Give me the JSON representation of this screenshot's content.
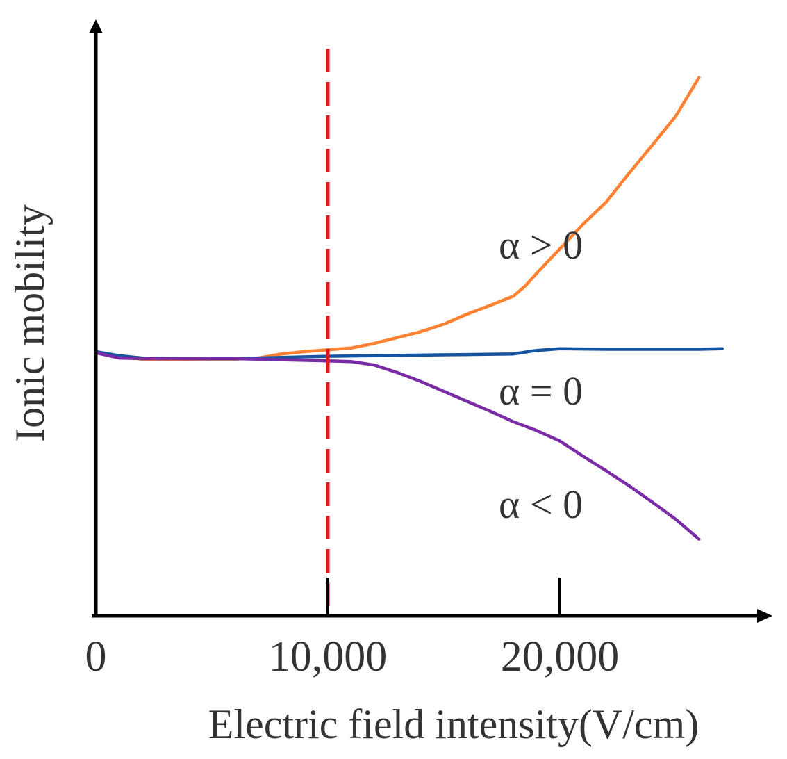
{
  "chart_data": {
    "type": "line",
    "title": "",
    "xlabel": "Electric field intensity(V/cm)",
    "ylabel": "Ionic mobility",
    "xlim": [
      0,
      29000
    ],
    "ylim": [
      0,
      100
    ],
    "x_ticks": [
      {
        "value": 0,
        "label": "0"
      },
      {
        "value": 10000,
        "label": "10,000"
      },
      {
        "value": 20000,
        "label": "20,000"
      }
    ],
    "reference_line": {
      "x": 10000,
      "style": "dashed",
      "color": "#e8151b"
    },
    "series": [
      {
        "name": "alpha-positive",
        "label": "α > 0",
        "color": "#ff8131",
        "points": [
          [
            0,
            45
          ],
          [
            1000,
            44.3
          ],
          [
            2000,
            43.9
          ],
          [
            3000,
            43.8
          ],
          [
            4000,
            43.8
          ],
          [
            5000,
            43.9
          ],
          [
            6000,
            43.9
          ],
          [
            7000,
            44.1
          ],
          [
            8000,
            44.8
          ],
          [
            9000,
            45.2
          ],
          [
            10000,
            45.5
          ],
          [
            11000,
            45.8
          ],
          [
            12000,
            46.6
          ],
          [
            13000,
            47.6
          ],
          [
            14000,
            48.6
          ],
          [
            15000,
            49.9
          ],
          [
            16000,
            51.6
          ],
          [
            17000,
            53.1
          ],
          [
            18000,
            54.7
          ],
          [
            18500,
            56.4
          ],
          [
            19000,
            58.6
          ],
          [
            20000,
            62.8
          ],
          [
            21000,
            67
          ],
          [
            22000,
            70.8
          ],
          [
            23000,
            75.8
          ],
          [
            24000,
            80.6
          ],
          [
            25000,
            85.5
          ],
          [
            26000,
            92.1
          ]
        ]
      },
      {
        "name": "alpha-zero",
        "label": "α = 0",
        "color": "#1654a0",
        "points": [
          [
            0,
            45.2
          ],
          [
            1000,
            44.5
          ],
          [
            2000,
            44.1
          ],
          [
            4000,
            44
          ],
          [
            6000,
            44
          ],
          [
            8000,
            44.2
          ],
          [
            10000,
            44.4
          ],
          [
            12000,
            44.5
          ],
          [
            14000,
            44.6
          ],
          [
            16000,
            44.7
          ],
          [
            18000,
            44.8
          ],
          [
            19000,
            45.4
          ],
          [
            20000,
            45.7
          ],
          [
            22000,
            45.6
          ],
          [
            24000,
            45.6
          ],
          [
            26000,
            45.6
          ],
          [
            27000,
            45.7
          ]
        ]
      },
      {
        "name": "alpha-negative",
        "label": "α < 0",
        "color": "#7a2ca6",
        "points": [
          [
            0,
            45
          ],
          [
            1000,
            44.1
          ],
          [
            2000,
            44
          ],
          [
            4000,
            44
          ],
          [
            6000,
            44
          ],
          [
            8000,
            43.8
          ],
          [
            10000,
            43.6
          ],
          [
            11000,
            43.5
          ],
          [
            12000,
            42.9
          ],
          [
            13000,
            41.6
          ],
          [
            14000,
            40.1
          ],
          [
            15000,
            38.4
          ],
          [
            16000,
            36.7
          ],
          [
            17000,
            35
          ],
          [
            18000,
            33.2
          ],
          [
            19000,
            31.7
          ],
          [
            20000,
            29.9
          ],
          [
            21000,
            27.3
          ],
          [
            22000,
            24.8
          ],
          [
            23000,
            22.2
          ],
          [
            24000,
            19.4
          ],
          [
            25000,
            16.5
          ],
          [
            26000,
            13.1
          ]
        ]
      }
    ]
  }
}
